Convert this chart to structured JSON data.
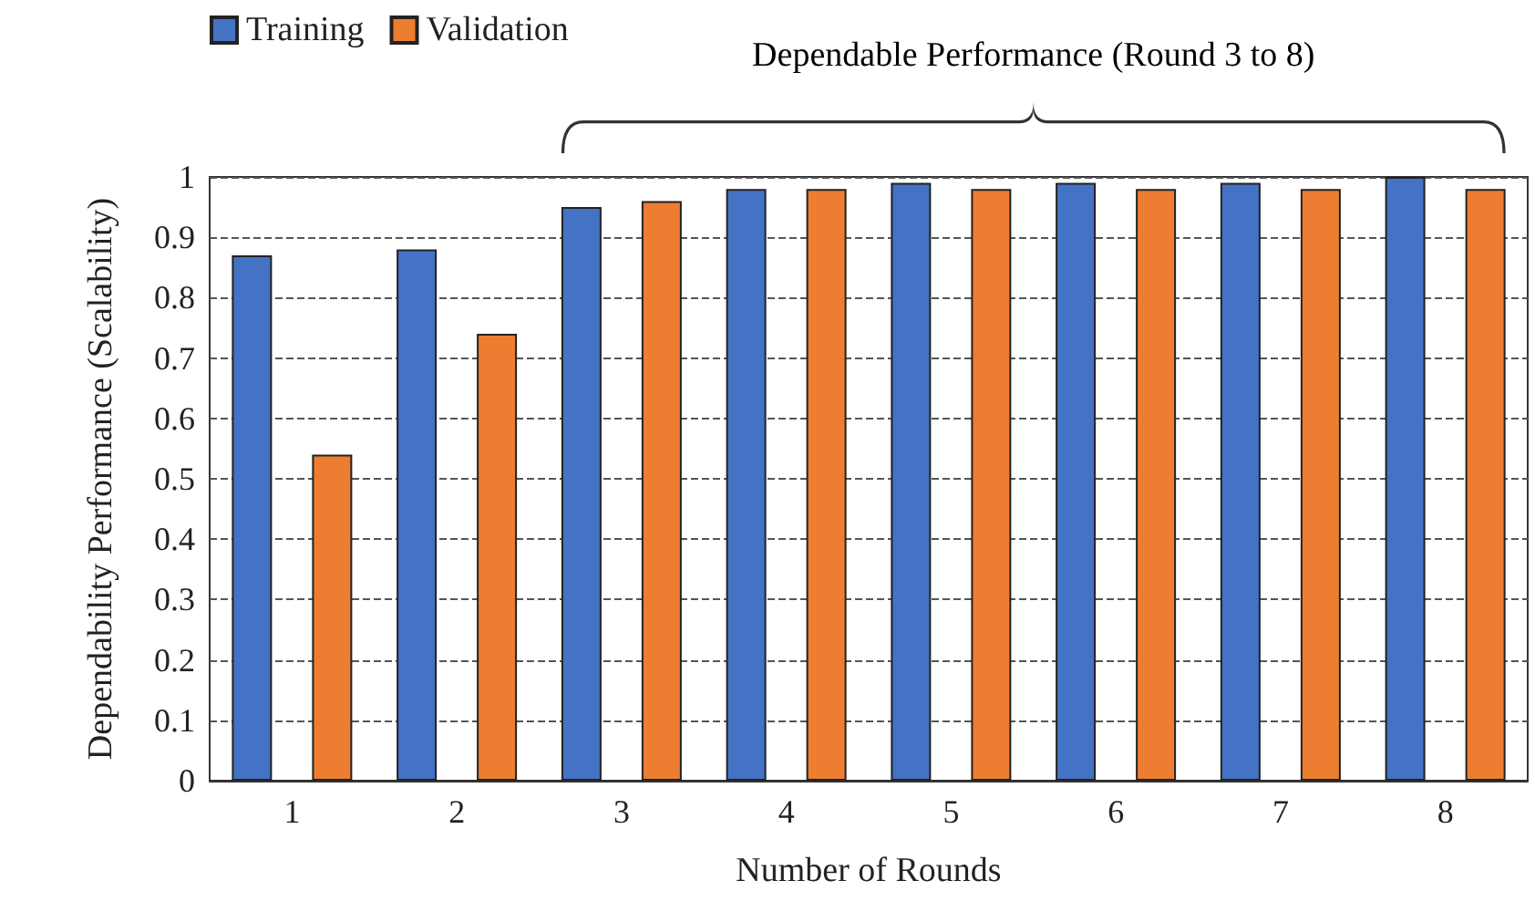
{
  "chart_data": {
    "type": "bar",
    "xlabel": "Number of Rounds",
    "ylabel": "Dependability Performance (Scalability)",
    "categories": [
      "1",
      "2",
      "3",
      "4",
      "5",
      "6",
      "7",
      "8"
    ],
    "series": [
      {
        "name": "Training",
        "color": "#4472c4",
        "values": [
          0.87,
          0.88,
          0.95,
          0.98,
          0.99,
          0.99,
          0.99,
          1.0
        ]
      },
      {
        "name": "Validation",
        "color": "#ed7d31",
        "values": [
          0.54,
          0.74,
          0.96,
          0.98,
          0.98,
          0.98,
          0.98,
          0.98
        ]
      }
    ],
    "annotations": [
      "Dependable Performance (Round 3 to 8)"
    ],
    "ylim": [
      0,
      1
    ],
    "yticks": [
      0,
      0.1,
      0.2,
      0.3,
      0.4,
      0.5,
      0.6,
      0.7,
      0.8,
      0.9,
      1
    ],
    "grid": "y",
    "legend": "top left"
  }
}
